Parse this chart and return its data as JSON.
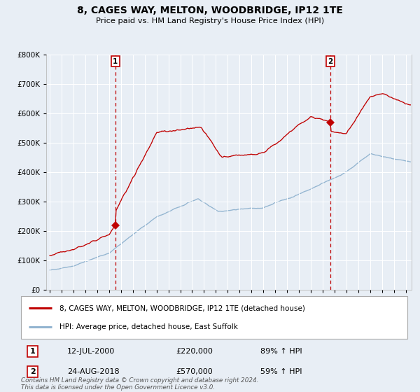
{
  "title": "8, CAGES WAY, MELTON, WOODBRIDGE, IP12 1TE",
  "subtitle": "Price paid vs. HM Land Registry's House Price Index (HPI)",
  "fig_bg": "#e8eef5",
  "plot_bg": "#e8eef5",
  "red_color": "#c00000",
  "blue_color": "#92b4d0",
  "legend_red": "8, CAGES WAY, MELTON, WOODBRIDGE, IP12 1TE (detached house)",
  "legend_blue": "HPI: Average price, detached house, East Suffolk",
  "sale1_label": "1",
  "sale1_date": "12-JUL-2000",
  "sale1_price": "£220,000",
  "sale1_hpi": "89% ↑ HPI",
  "sale1_x": 2000.53,
  "sale1_y": 220000,
  "sale2_label": "2",
  "sale2_date": "24-AUG-2018",
  "sale2_price": "£570,000",
  "sale2_hpi": "59% ↑ HPI",
  "sale2_x": 2018.64,
  "sale2_y": 570000,
  "ylim": [
    0,
    800000
  ],
  "ytick_vals": [
    0,
    100000,
    200000,
    300000,
    400000,
    500000,
    600000,
    700000,
    800000
  ],
  "ytick_labels": [
    "£0",
    "£100K",
    "£200K",
    "£300K",
    "£400K",
    "£500K",
    "£600K",
    "£700K",
    "£800K"
  ],
  "xstart": 1994.7,
  "xend": 2025.5,
  "xtick_years": [
    1995,
    1996,
    1997,
    1998,
    1999,
    2000,
    2001,
    2002,
    2003,
    2004,
    2005,
    2006,
    2007,
    2008,
    2009,
    2010,
    2011,
    2012,
    2013,
    2014,
    2015,
    2016,
    2017,
    2018,
    2019,
    2020,
    2021,
    2022,
    2023,
    2024,
    2025
  ],
  "footer1": "Contains HM Land Registry data © Crown copyright and database right 2024.",
  "footer2": "This data is licensed under the Open Government Licence v3.0."
}
